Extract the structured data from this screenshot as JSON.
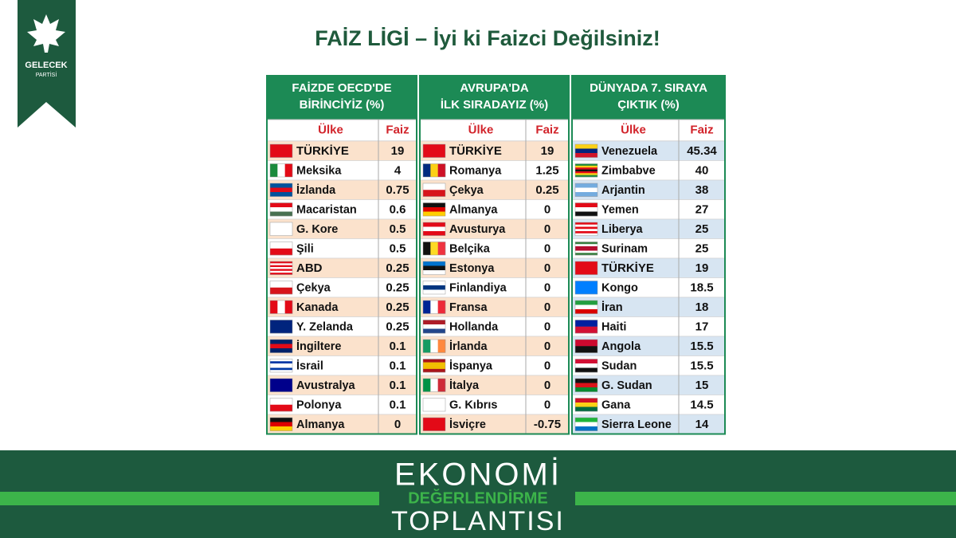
{
  "logo": {
    "name": "GELECEK",
    "sub": "PARTİSİ"
  },
  "title": "FAİZ LİGİ – İyi ki Faizci Değilsiniz!",
  "tables": [
    {
      "header": [
        "FAİZDE OECD'DE",
        "BİRİNCİYİZ (%)"
      ],
      "columns": [
        "Ülke",
        "Faiz"
      ],
      "rows": [
        [
          "TÜRKİYE",
          "19"
        ],
        [
          "Meksika",
          "4"
        ],
        [
          "İzlanda",
          "0.75"
        ],
        [
          "Macaristan",
          "0.6"
        ],
        [
          "G. Kore",
          "0.5"
        ],
        [
          "Şili",
          "0.5"
        ],
        [
          "ABD",
          "0.25"
        ],
        [
          "Çekya",
          "0.25"
        ],
        [
          "Kanada",
          "0.25"
        ],
        [
          "Y. Zelanda",
          "0.25"
        ],
        [
          "İngiltere",
          "0.1"
        ],
        [
          "İsrail",
          "0.1"
        ],
        [
          "Avustralya",
          "0.1"
        ],
        [
          "Polonya",
          "0.1"
        ],
        [
          "Almanya",
          "0"
        ]
      ]
    },
    {
      "header": [
        "AVRUPA'DA",
        "İLK SIRADAYIZ (%)"
      ],
      "columns": [
        "Ülke",
        "Faiz"
      ],
      "rows": [
        [
          "TÜRKİYE",
          "19"
        ],
        [
          "Romanya",
          "1.25"
        ],
        [
          "Çekya",
          "0.25"
        ],
        [
          "Almanya",
          "0"
        ],
        [
          "Avusturya",
          "0"
        ],
        [
          "Belçika",
          "0"
        ],
        [
          "Estonya",
          "0"
        ],
        [
          "Finlandiya",
          "0"
        ],
        [
          "Fransa",
          "0"
        ],
        [
          "Hollanda",
          "0"
        ],
        [
          "İrlanda",
          "0"
        ],
        [
          "İspanya",
          "0"
        ],
        [
          "İtalya",
          "0"
        ],
        [
          "G. Kıbrıs",
          "0"
        ],
        [
          "İsviçre",
          "-0.75"
        ]
      ]
    },
    {
      "header": [
        "DÜNYADA 7. SIRAYA",
        "ÇIKTIK (%)"
      ],
      "columns": [
        "Ülke",
        "Faiz"
      ],
      "rows": [
        [
          "Venezuela",
          "45.34"
        ],
        [
          "Zimbabve",
          "40"
        ],
        [
          "Arjantin",
          "38"
        ],
        [
          "Yemen",
          "27"
        ],
        [
          "Liberya",
          "25"
        ],
        [
          "Surinam",
          "25"
        ],
        [
          "TÜRKİYE",
          "19"
        ],
        [
          "Kongo",
          "18.5"
        ],
        [
          "İran",
          "18"
        ],
        [
          "Haiti",
          "17"
        ],
        [
          "Angola",
          "15.5"
        ],
        [
          "Sudan",
          "15.5"
        ],
        [
          "G. Sudan",
          "15"
        ],
        [
          "Gana",
          "14.5"
        ],
        [
          "Sierra Leone",
          "14"
        ]
      ]
    }
  ],
  "footer": {
    "line1": "EKONOMİ",
    "line2": "DEĞERLENDİRME",
    "line3": "TOPLANTISI"
  }
}
